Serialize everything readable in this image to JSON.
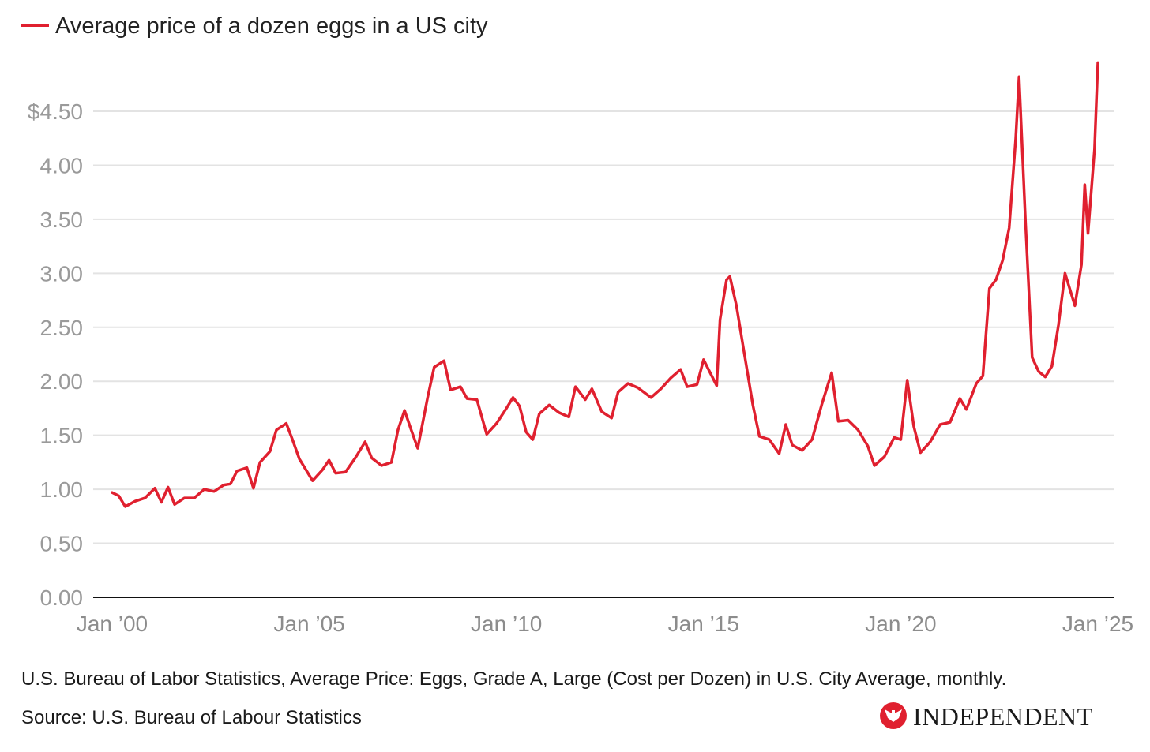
{
  "colors": {
    "series": "#e0202f",
    "grid": "#e3e3e3",
    "axis": "#111111",
    "tick": "#9a9a9a",
    "logo_red": "#e0202f"
  },
  "chart_data": {
    "type": "line",
    "title": "",
    "xlabel": "",
    "ylabel": "",
    "legend_position": "top-left",
    "grid": true,
    "ylim": [
      0,
      4.95
    ],
    "x_range": [
      "2000-01",
      "2025-01"
    ],
    "y_ticks": [
      {
        "value": 0,
        "label": "0.00"
      },
      {
        "value": 0.5,
        "label": "0.50"
      },
      {
        "value": 1,
        "label": "1.00"
      },
      {
        "value": 1.5,
        "label": "1.50"
      },
      {
        "value": 2,
        "label": "2.00"
      },
      {
        "value": 2.5,
        "label": "2.50"
      },
      {
        "value": 3,
        "label": "3.00"
      },
      {
        "value": 3.5,
        "label": "3.50"
      },
      {
        "value": 4,
        "label": "4.00"
      },
      {
        "value": 4.5,
        "label": "$4.50"
      }
    ],
    "x_ticks": [
      {
        "value": "2000-01",
        "label": "Jan ’00"
      },
      {
        "value": "2005-01",
        "label": "Jan ’05"
      },
      {
        "value": "2010-01",
        "label": "Jan ’10"
      },
      {
        "value": "2015-01",
        "label": "Jan ’15"
      },
      {
        "value": "2020-01",
        "label": "Jan ’20"
      },
      {
        "value": "2025-01",
        "label": "Jan ’25"
      }
    ],
    "series": [
      {
        "name": "Average price of a dozen eggs in a US city",
        "points": [
          [
            "2000-01",
            0.97
          ],
          [
            "2000-03",
            0.94
          ],
          [
            "2000-05",
            0.84
          ],
          [
            "2000-08",
            0.89
          ],
          [
            "2000-11",
            0.92
          ],
          [
            "2001-02",
            1.01
          ],
          [
            "2001-04",
            0.88
          ],
          [
            "2001-06",
            1.02
          ],
          [
            "2001-08",
            0.86
          ],
          [
            "2001-11",
            0.92
          ],
          [
            "2002-02",
            0.92
          ],
          [
            "2002-05",
            1.0
          ],
          [
            "2002-08",
            0.98
          ],
          [
            "2002-11",
            1.04
          ],
          [
            "2003-01",
            1.05
          ],
          [
            "2003-03",
            1.17
          ],
          [
            "2003-06",
            1.2
          ],
          [
            "2003-08",
            1.01
          ],
          [
            "2003-10",
            1.25
          ],
          [
            "2004-01",
            1.35
          ],
          [
            "2004-03",
            1.55
          ],
          [
            "2004-06",
            1.61
          ],
          [
            "2004-08",
            1.45
          ],
          [
            "2004-10",
            1.28
          ],
          [
            "2005-02",
            1.08
          ],
          [
            "2005-05",
            1.18
          ],
          [
            "2005-07",
            1.27
          ],
          [
            "2005-09",
            1.15
          ],
          [
            "2005-12",
            1.16
          ],
          [
            "2006-03",
            1.29
          ],
          [
            "2006-06",
            1.44
          ],
          [
            "2006-08",
            1.29
          ],
          [
            "2006-11",
            1.22
          ],
          [
            "2007-02",
            1.25
          ],
          [
            "2007-04",
            1.55
          ],
          [
            "2007-06",
            1.73
          ],
          [
            "2007-08",
            1.55
          ],
          [
            "2007-10",
            1.38
          ],
          [
            "2008-01",
            1.85
          ],
          [
            "2008-03",
            2.13
          ],
          [
            "2008-06",
            2.19
          ],
          [
            "2008-08",
            1.92
          ],
          [
            "2008-11",
            1.95
          ],
          [
            "2009-01",
            1.84
          ],
          [
            "2009-04",
            1.83
          ],
          [
            "2009-07",
            1.51
          ],
          [
            "2009-10",
            1.61
          ],
          [
            "2010-01",
            1.75
          ],
          [
            "2010-03",
            1.85
          ],
          [
            "2010-05",
            1.77
          ],
          [
            "2010-07",
            1.53
          ],
          [
            "2010-09",
            1.46
          ],
          [
            "2010-11",
            1.7
          ],
          [
            "2011-02",
            1.78
          ],
          [
            "2011-05",
            1.71
          ],
          [
            "2011-08",
            1.67
          ],
          [
            "2011-10",
            1.95
          ],
          [
            "2012-01",
            1.83
          ],
          [
            "2012-03",
            1.93
          ],
          [
            "2012-06",
            1.72
          ],
          [
            "2012-09",
            1.66
          ],
          [
            "2012-11",
            1.9
          ],
          [
            "2013-02",
            1.98
          ],
          [
            "2013-05",
            1.94
          ],
          [
            "2013-09",
            1.85
          ],
          [
            "2013-12",
            1.93
          ],
          [
            "2014-03",
            2.03
          ],
          [
            "2014-06",
            2.11
          ],
          [
            "2014-08",
            1.95
          ],
          [
            "2014-11",
            1.97
          ],
          [
            "2015-01",
            2.2
          ],
          [
            "2015-03",
            2.08
          ],
          [
            "2015-05",
            1.96
          ],
          [
            "2015-06",
            2.57
          ],
          [
            "2015-08",
            2.94
          ],
          [
            "2015-09",
            2.97
          ],
          [
            "2015-11",
            2.7
          ],
          [
            "2016-01",
            2.33
          ],
          [
            "2016-04",
            1.78
          ],
          [
            "2016-06",
            1.49
          ],
          [
            "2016-09",
            1.46
          ],
          [
            "2016-12",
            1.33
          ],
          [
            "2017-02",
            1.6
          ],
          [
            "2017-04",
            1.41
          ],
          [
            "2017-07",
            1.36
          ],
          [
            "2017-10",
            1.46
          ],
          [
            "2018-01",
            1.79
          ],
          [
            "2018-04",
            2.08
          ],
          [
            "2018-06",
            1.63
          ],
          [
            "2018-09",
            1.64
          ],
          [
            "2018-12",
            1.55
          ],
          [
            "2019-03",
            1.4
          ],
          [
            "2019-05",
            1.22
          ],
          [
            "2019-08",
            1.3
          ],
          [
            "2019-11",
            1.48
          ],
          [
            "2020-01",
            1.46
          ],
          [
            "2020-03",
            2.01
          ],
          [
            "2020-05",
            1.58
          ],
          [
            "2020-07",
            1.34
          ],
          [
            "2020-10",
            1.44
          ],
          [
            "2021-01",
            1.6
          ],
          [
            "2021-04",
            1.62
          ],
          [
            "2021-07",
            1.84
          ],
          [
            "2021-09",
            1.74
          ],
          [
            "2021-12",
            1.98
          ],
          [
            "2022-02",
            2.05
          ],
          [
            "2022-04",
            2.86
          ],
          [
            "2022-06",
            2.94
          ],
          [
            "2022-08",
            3.12
          ],
          [
            "2022-10",
            3.42
          ],
          [
            "2022-12",
            4.25
          ],
          [
            "2023-01",
            4.82
          ],
          [
            "2023-03",
            3.45
          ],
          [
            "2023-05",
            2.22
          ],
          [
            "2023-07",
            2.09
          ],
          [
            "2023-09",
            2.04
          ],
          [
            "2023-11",
            2.14
          ],
          [
            "2024-01",
            2.52
          ],
          [
            "2024-03",
            3.0
          ],
          [
            "2024-06",
            2.7
          ],
          [
            "2024-08",
            3.08
          ],
          [
            "2024-09",
            3.82
          ],
          [
            "2024-10",
            3.37
          ],
          [
            "2024-12",
            4.15
          ],
          [
            "2025-01",
            4.95
          ]
        ]
      }
    ]
  },
  "footer": {
    "description": "U.S. Bureau of Labor Statistics, Average Price: Eggs, Grade A, Large (Cost per Dozen) in U.S. City Average, monthly.",
    "source": "Source: U.S. Bureau of Labour Statistics",
    "logo_text": "INDEPENDENT",
    "logo_icon": "eagle-icon"
  }
}
